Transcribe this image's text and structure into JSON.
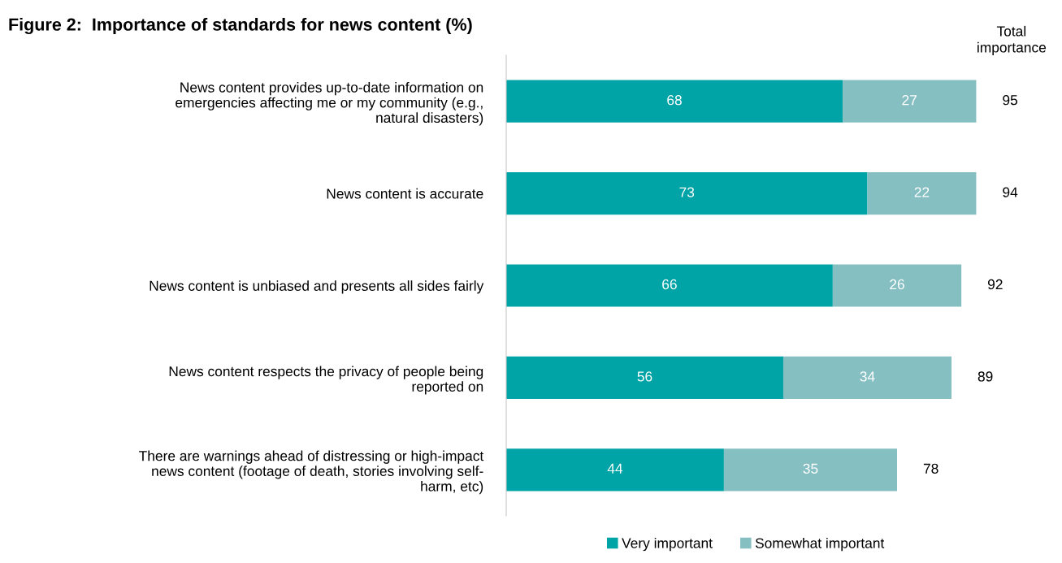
{
  "chart_data": {
    "type": "bar",
    "orientation": "horizontal",
    "stacked": true,
    "title": "Figure 2:  Importance of standards for news content (%)",
    "categories": [
      "News content provides up-to-date information on\nemergencies affecting me or my community (e.g.,\nnatural disasters)",
      "News content is accurate",
      "News content is unbiased and presents all sides fairly",
      "News content respects the privacy of people being\nreported on",
      "There are warnings ahead of distressing or high-impact\nnews content (footage of death, stories involving self-\nharm, etc)"
    ],
    "series": [
      {
        "name": "Very important",
        "color": "#00a3a6",
        "values": [
          68,
          73,
          66,
          56,
          44
        ]
      },
      {
        "name": "Somewhat important",
        "color": "#86bfc2",
        "values": [
          27,
          22,
          26,
          34,
          35
        ]
      }
    ],
    "data_labels": true,
    "totals": [
      "95",
      "94",
      "92",
      "89",
      "78"
    ],
    "annotations": [
      "Total\nimportance"
    ],
    "legend": "bottom",
    "grid": false,
    "tick_labels": "y"
  }
}
